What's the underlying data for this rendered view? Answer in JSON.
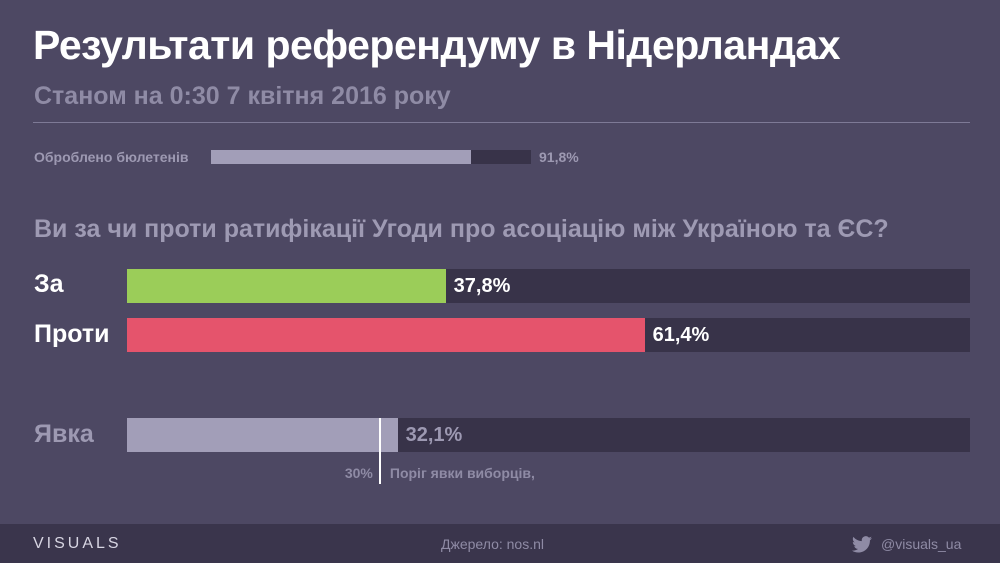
{
  "header": {
    "title": "Результати референдуму в Нідерландах",
    "subtitle": "Станом на 0:30 7 квітня 2016 року"
  },
  "processed": {
    "label": "Оброблено бюлетенів",
    "value": 91.8,
    "value_label": "91,8%"
  },
  "chart_data": {
    "type": "bar",
    "title": "Ви за чи проти ратифікації Угоди про асоціацію між Україною та ЄС?",
    "orientation": "horizontal",
    "ylim": [
      0,
      100
    ],
    "bars": [
      {
        "key": "za",
        "label": "За",
        "value": 37.8,
        "value_label": "37,8%",
        "color": "#9bcd59",
        "label_color": "#ffffff"
      },
      {
        "key": "proty",
        "label": "Проти",
        "value": 61.4,
        "value_label": "61,4%",
        "color": "#e5546c",
        "label_color": "#ffffff"
      },
      {
        "key": "turnout",
        "label": "Явка",
        "value": 32.1,
        "value_label": "32,1%",
        "color": "#a29eb8",
        "label_color": "#9d99b2"
      }
    ],
    "threshold": {
      "value": 30,
      "value_label": "30%",
      "label": "Поріг явки виборців,"
    }
  },
  "footer": {
    "brand": "VISUALS",
    "source": "Джерело: nos.nl",
    "handle": "@visuals_ua",
    "icon": "twitter-icon"
  }
}
